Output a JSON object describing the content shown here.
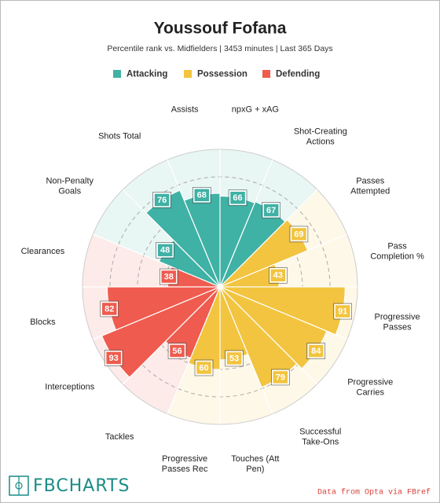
{
  "chart_data": {
    "type": "pizza",
    "title": "Youssouf Fofana",
    "subtitle": "Percentile rank vs. Midfielders | 3453 minutes | Last 365 Days",
    "legend": [
      {
        "name": "Attacking",
        "color": "#3fb1a5"
      },
      {
        "name": "Possession",
        "color": "#f2c43f"
      },
      {
        "name": "Defending",
        "color": "#ef5b4e"
      }
    ],
    "categories": [
      "npxG + xAG",
      "Shot-Creating Actions",
      "Passes Attempted",
      "Pass Completion %",
      "Progressive Passes",
      "Progressive Carries",
      "Successful Take-Ons",
      "Touches (Att Pen)",
      "Progressive Passes Rec",
      "Tackles",
      "Interceptions",
      "Blocks",
      "Clearances",
      "Non-Penalty Goals",
      "Shots Total",
      "Assists"
    ],
    "values": [
      66,
      67,
      69,
      43,
      91,
      84,
      79,
      53,
      60,
      56,
      93,
      82,
      38,
      48,
      76,
      68
    ],
    "colors": [
      "#3fb1a5",
      "#3fb1a5",
      "#f2c43f",
      "#f2c43f",
      "#f2c43f",
      "#f2c43f",
      "#f2c43f",
      "#f2c43f",
      "#f2c43f",
      "#ef5b4e",
      "#ef5b4e",
      "#ef5b4e",
      "#ef5b4e",
      "#3fb1a5",
      "#3fb1a5",
      "#3fb1a5"
    ],
    "rlim": [
      0,
      100
    ],
    "rticks": [
      20,
      40,
      60,
      80
    ],
    "brand": "FBCHARTS",
    "source": "Data from Opta via FBref"
  }
}
